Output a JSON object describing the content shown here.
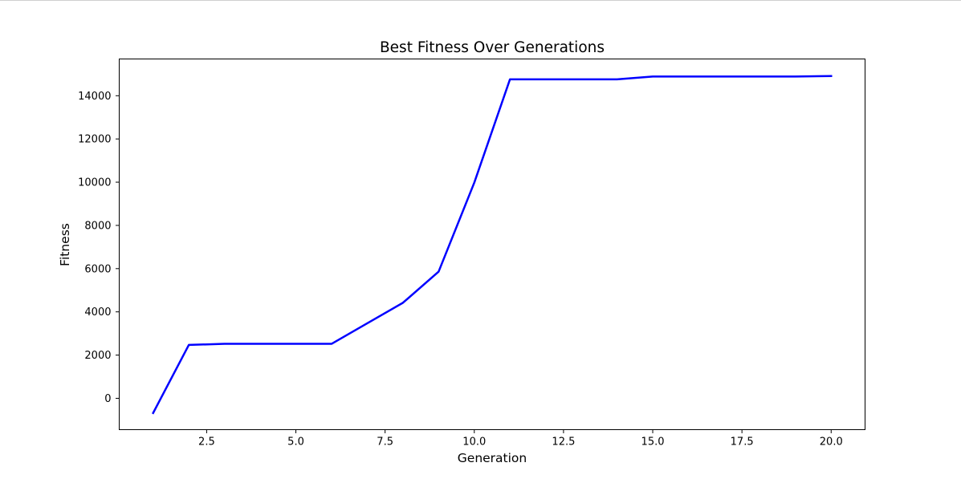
{
  "chart_data": {
    "type": "line",
    "title": "Best Fitness Over Generations",
    "xlabel": "Generation",
    "ylabel": "Fitness",
    "xlim": [
      0.05,
      20.95
    ],
    "ylim": [
      -1450,
      15700
    ],
    "x_ticks": [
      2.5,
      5.0,
      7.5,
      10.0,
      12.5,
      15.0,
      17.5,
      20.0
    ],
    "x_tick_labels": [
      "2.5",
      "5.0",
      "7.5",
      "10.0",
      "12.5",
      "15.0",
      "17.5",
      "20.0"
    ],
    "y_ticks": [
      0,
      2000,
      4000,
      6000,
      8000,
      10000,
      12000,
      14000
    ],
    "y_tick_labels": [
      "0",
      "2000",
      "4000",
      "6000",
      "8000",
      "10000",
      "12000",
      "14000"
    ],
    "grid": false,
    "series": [
      {
        "color": "#0000ff",
        "x": [
          1,
          2,
          3,
          4,
          5,
          6,
          7,
          8,
          9,
          10,
          11,
          12,
          13,
          14,
          15,
          16,
          17,
          18,
          19,
          20
        ],
        "y": [
          -680,
          2470,
          2520,
          2520,
          2520,
          2520,
          3470,
          4420,
          5860,
          9980,
          14760,
          14760,
          14760,
          14760,
          14890,
          14890,
          14890,
          14890,
          14890,
          14910
        ]
      }
    ]
  }
}
